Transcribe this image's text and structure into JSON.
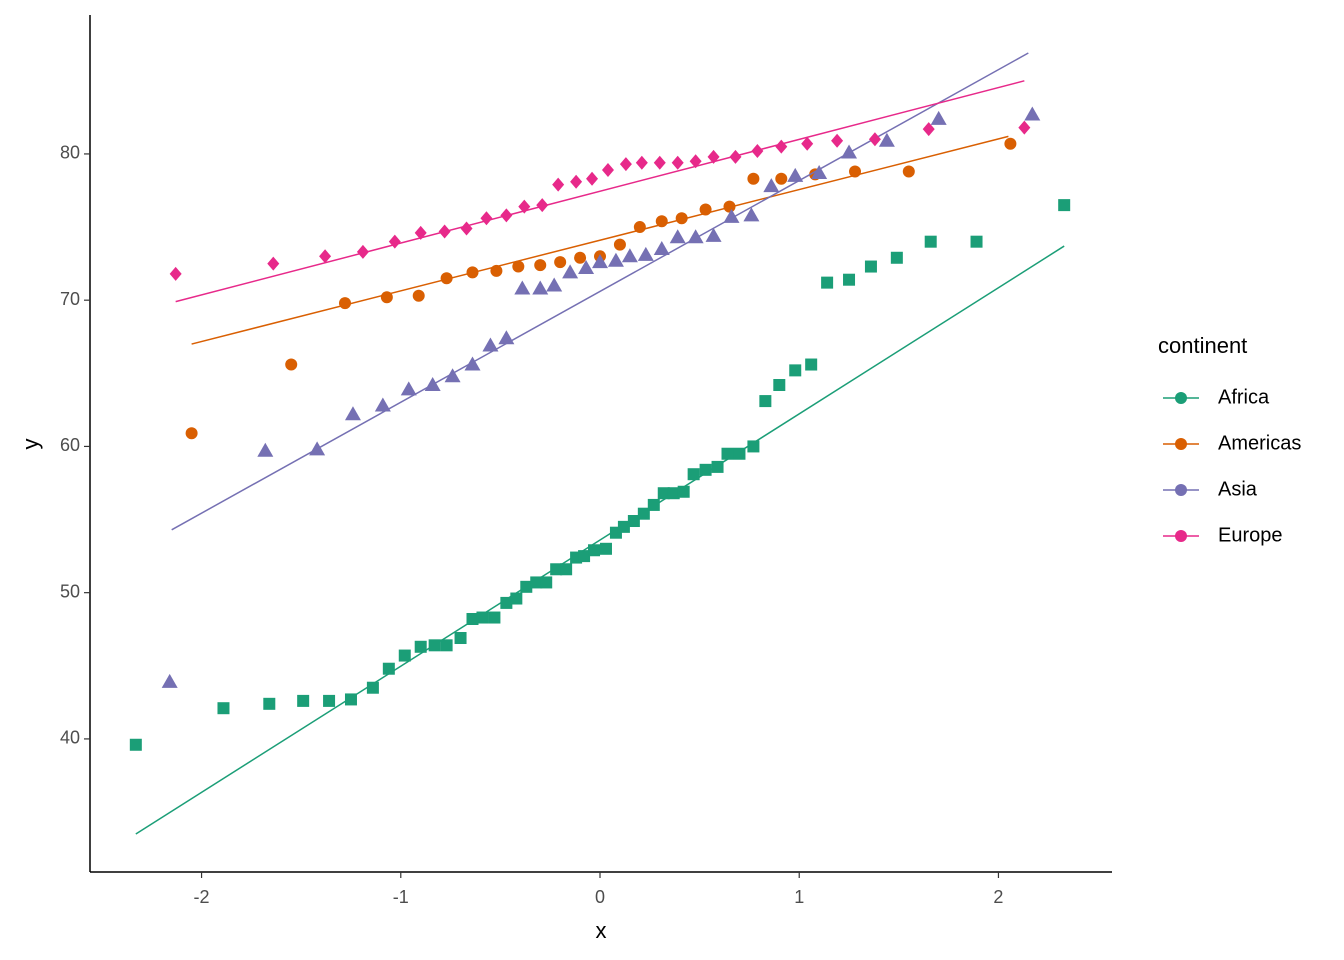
{
  "chart_data": {
    "type": "scatter",
    "x_label": "x",
    "y_label": "y",
    "legend_title": "continent",
    "legend": "right",
    "xlim": [
      -2.56,
      2.57
    ],
    "ylim": [
      30.9,
      89.5
    ],
    "xticks": [
      -2,
      -1,
      0,
      1,
      2
    ],
    "yticks": [
      40,
      50,
      60,
      70,
      80
    ],
    "series": [
      {
        "name": "Africa",
        "color": "#1b9e77",
        "shape": "square",
        "x": [
          -2.33,
          -1.89,
          -1.66,
          -1.49,
          -1.36,
          -1.25,
          -1.14,
          -1.06,
          -0.98,
          -0.9,
          -0.83,
          -0.77,
          -0.7,
          -0.64,
          -0.59,
          -0.53,
          -0.47,
          -0.42,
          -0.37,
          -0.32,
          -0.27,
          -0.22,
          -0.17,
          -0.12,
          -0.08,
          -0.03,
          0.03,
          0.08,
          0.12,
          0.17,
          0.22,
          0.27,
          0.32,
          0.37,
          0.42,
          0.47,
          0.53,
          0.59,
          0.64,
          0.7,
          0.77,
          0.83,
          0.9,
          0.98,
          1.06,
          1.14,
          1.25,
          1.36,
          1.49,
          1.66,
          1.89,
          2.33
        ],
        "values": [
          39.6,
          42.1,
          42.4,
          42.6,
          42.6,
          42.7,
          43.5,
          44.8,
          45.7,
          46.3,
          46.4,
          46.4,
          46.9,
          48.2,
          48.3,
          48.3,
          49.3,
          49.6,
          50.4,
          50.7,
          50.7,
          51.6,
          51.6,
          52.4,
          52.5,
          52.9,
          53.0,
          54.1,
          54.5,
          54.9,
          55.4,
          56.0,
          56.8,
          56.8,
          56.9,
          58.1,
          58.4,
          58.6,
          59.5,
          59.5,
          60.0,
          63.1,
          64.2,
          65.2,
          65.6,
          71.2,
          71.4,
          72.3,
          72.9,
          74.0,
          74.0,
          76.5
        ],
        "line_x": [
          -2.33,
          2.33
        ],
        "line_y": [
          33.5,
          73.7
        ]
      },
      {
        "name": "Americas",
        "color": "#d95f02",
        "shape": "circle",
        "x": [
          -2.05,
          -1.55,
          -1.28,
          -1.07,
          -0.91,
          -0.77,
          -0.64,
          -0.52,
          -0.41,
          -0.3,
          -0.2,
          -0.1,
          0,
          0.1,
          0.2,
          0.31,
          0.41,
          0.53,
          0.65,
          0.77,
          0.91,
          1.08,
          1.28,
          1.55,
          2.06
        ],
        "values": [
          60.9,
          65.6,
          69.8,
          70.2,
          70.3,
          71.5,
          71.9,
          72.0,
          72.3,
          72.4,
          72.6,
          72.9,
          73.0,
          73.8,
          75.0,
          75.4,
          75.6,
          76.2,
          76.4,
          78.3,
          78.3,
          78.6,
          78.8,
          78.8,
          80.7
        ],
        "line_x": [
          -2.05,
          2.05
        ],
        "line_y": [
          67.0,
          81.2
        ]
      },
      {
        "name": "Asia",
        "color": "#7570b3",
        "shape": "triangle",
        "x": [
          -2.16,
          -1.68,
          -1.42,
          -1.24,
          -1.09,
          -0.96,
          -0.84,
          -0.74,
          -0.64,
          -0.55,
          -0.47,
          -0.39,
          -0.3,
          -0.23,
          -0.15,
          -0.07,
          0,
          0.08,
          0.15,
          0.23,
          0.31,
          0.39,
          0.48,
          0.57,
          0.66,
          0.76,
          0.86,
          0.98,
          1.1,
          1.25,
          1.44,
          1.7,
          2.17
        ],
        "values": [
          43.9,
          59.7,
          59.8,
          62.2,
          62.8,
          63.9,
          64.2,
          64.8,
          65.6,
          66.9,
          67.4,
          70.8,
          70.8,
          71.0,
          71.9,
          72.2,
          72.6,
          72.7,
          73.0,
          73.1,
          73.5,
          74.3,
          74.3,
          74.4,
          75.7,
          75.8,
          77.8,
          78.5,
          78.7,
          80.1,
          80.9,
          82.4,
          82.7
        ],
        "line_x": [
          -2.15,
          2.15
        ],
        "line_y": [
          54.3,
          86.9
        ]
      },
      {
        "name": "Europe",
        "color": "#e7298a",
        "shape": "diamond",
        "x": [
          -2.13,
          -1.64,
          -1.38,
          -1.19,
          -1.03,
          -0.9,
          -0.78,
          -0.67,
          -0.57,
          -0.47,
          -0.38,
          -0.29,
          -0.21,
          -0.12,
          -0.04,
          0.04,
          0.13,
          0.21,
          0.3,
          0.39,
          0.48,
          0.57,
          0.68,
          0.79,
          0.91,
          1.04,
          1.19,
          1.38,
          1.65,
          2.13
        ],
        "values": [
          71.8,
          72.5,
          73.0,
          73.3,
          74.0,
          74.6,
          74.7,
          74.9,
          75.6,
          75.8,
          76.4,
          76.5,
          77.9,
          78.1,
          78.3,
          78.9,
          79.3,
          79.4,
          79.4,
          79.4,
          79.5,
          79.8,
          79.8,
          80.2,
          80.5,
          80.7,
          80.9,
          81.0,
          81.7,
          81.8
        ],
        "line_x": [
          -2.13,
          2.13
        ],
        "line_y": [
          69.9,
          85.0
        ]
      }
    ]
  }
}
